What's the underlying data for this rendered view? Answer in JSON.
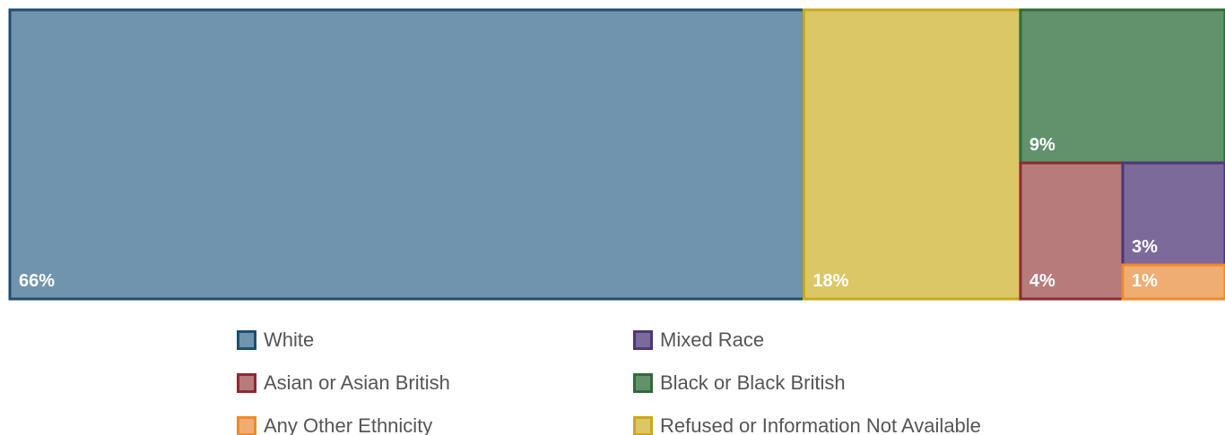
{
  "chart_data": {
    "type": "treemap",
    "categories": [
      "White",
      "Asian or Asian British",
      "Any Other Ethnicity",
      "Mixed Race",
      "Black or Black British",
      "Refused or Information Not Available"
    ],
    "values": [
      66,
      4,
      1,
      3,
      9,
      18
    ],
    "value_labels": [
      "66%",
      "4%",
      "1%",
      "3%",
      "9%",
      "18%"
    ],
    "colors": [
      "#7094ad",
      "#b87b7b",
      "#f0ad72",
      "#7b6a9a",
      "#62926c",
      "#dbc766"
    ],
    "edge_colors": [
      "#1f4e70",
      "#8c2a32",
      "#ed8a2c",
      "#4b3877",
      "#2f6b3a",
      "#c8a81f"
    ]
  }
}
